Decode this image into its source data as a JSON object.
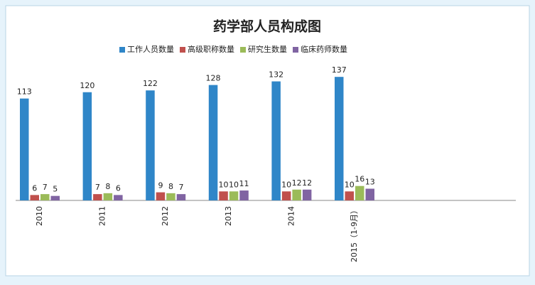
{
  "chart_data": {
    "type": "bar",
    "title": "药学部人员构成图",
    "categories": [
      "2010",
      "2011",
      "2012",
      "2013",
      "2014",
      "2015（1-9月）"
    ],
    "series": [
      {
        "name": "工作人员数量",
        "color": "#2f86c8",
        "values": [
          113,
          120,
          122,
          128,
          132,
          137
        ]
      },
      {
        "name": "高级职称数量",
        "color": "#c0504d",
        "values": [
          6,
          7,
          9,
          10,
          10,
          10
        ]
      },
      {
        "name": "研究生数量",
        "color": "#9bbb59",
        "values": [
          7,
          8,
          8,
          10,
          12,
          16
        ]
      },
      {
        "name": "临床药师数量",
        "color": "#8064a2",
        "values": [
          5,
          6,
          7,
          11,
          12,
          13
        ]
      }
    ],
    "ylim": [
      0,
      160
    ],
    "legend": "top"
  }
}
